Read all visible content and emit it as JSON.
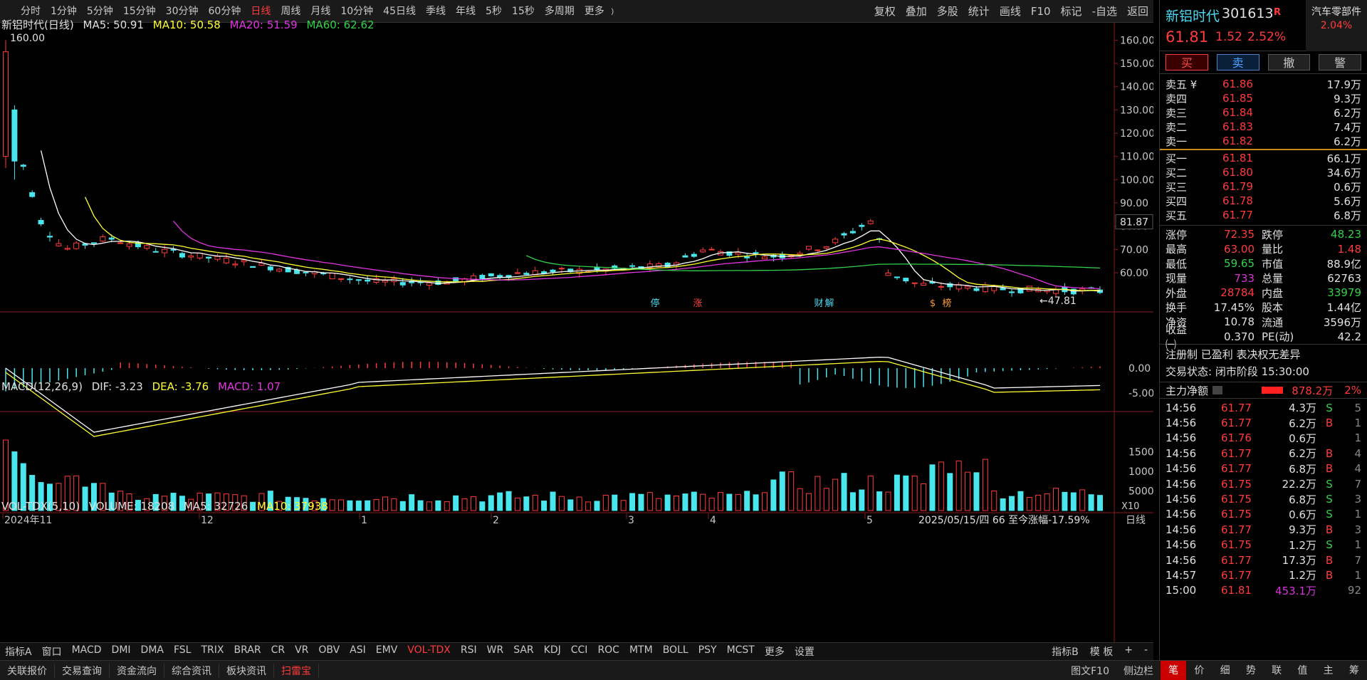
{
  "toolbar": {
    "periods": [
      "分时",
      "1分钟",
      "5分钟",
      "15分钟",
      "30分钟",
      "60分钟",
      "日线",
      "周线",
      "月线",
      "10分钟",
      "45日线",
      "季线",
      "年线",
      "5秒",
      "15秒",
      "多周期",
      "更多 ﹚"
    ],
    "active_period": "日线",
    "tools": [
      "复权",
      "叠加",
      "多股",
      "统计",
      "画线",
      "F10",
      "标记",
      "-自选",
      "返回"
    ]
  },
  "chart": {
    "title": "新铝时代(日线)",
    "ma5_label": "MA5: 50.91",
    "ma10_label": "MA10: 50.58",
    "ma20_label": "MA20: 51.59",
    "ma60_label": "MA60: 62.62",
    "high_marker": "160.00",
    "low_marker": "←47.81",
    "last_price_tag": "81.87",
    "y_ticks": [
      "160.00",
      "150.00",
      "140.00",
      "130.00",
      "120.00",
      "110.00",
      "100.00",
      "90.00",
      "80.00",
      "70.00",
      "60.00"
    ],
    "event_markers": [
      "停",
      "涨",
      "财",
      "解",
      "$",
      "榜"
    ],
    "macd_legend": "MACD(12,26,9)",
    "macd_dif": "DIF: -3.23",
    "macd_dea": "DEA: -3.76",
    "macd_val": "MACD: 1.07",
    "macd_ticks": [
      "0.00",
      "-5.00"
    ],
    "vol_legend": "VOL-TDX(5,10)",
    "vol_value": "VOLUME: 18208",
    "vol_ma5": "MA5: 32726",
    "vol_ma10": "MA10: 37938",
    "vol_ticks": [
      "15000",
      "10000",
      "5000"
    ],
    "vol_unit": "X10",
    "date_labels": [
      "2024年11",
      "12",
      "1",
      "2",
      "3",
      "4",
      "5"
    ],
    "date_info": "2025/05/15/四 66 至今涨幅-17.59%",
    "axis_period": "日线",
    "colors": {
      "up": "#ff3b3b",
      "down": "#4ae6ee",
      "ma5": "#ffffff",
      "ma10": "#ffff33",
      "ma20": "#e035e0",
      "ma60": "#33d14a"
    }
  },
  "indicator_tabs": [
    "指标A",
    "窗口",
    "MACD",
    "DMI",
    "DMA",
    "FSL",
    "TRIX",
    "BRAR",
    "CR",
    "VR",
    "OBV",
    "ASI",
    "EMV",
    "VOL-TDX",
    "RSI",
    "WR",
    "SAR",
    "KDJ",
    "CCI",
    "ROC",
    "MTM",
    "BOLL",
    "PSY",
    "MCST",
    "更多",
    "设置"
  ],
  "active_indicator": "VOL-TDX",
  "indicator_right": [
    "指标B",
    "模 板",
    "+",
    "-"
  ],
  "statusbar": {
    "items": [
      "关联报价",
      "交易查询",
      "资金流向",
      "综合资讯",
      "板块资讯",
      "扫雷宝"
    ],
    "active": "扫雷宝",
    "right": [
      "图文F10",
      "侧边栏"
    ],
    "quote_tabs": [
      "笔",
      "价",
      "细",
      "势",
      "联",
      "值",
      "主",
      "筹"
    ],
    "active_quote_tab": "笔"
  },
  "stock": {
    "name": "新铝时代",
    "code": "301613",
    "r_mark": "R",
    "sector": "汽车零部件",
    "sector_pct": "2.04%",
    "price": "61.81",
    "change": "1.52",
    "change_pct": "2.52%"
  },
  "trade_buttons": {
    "buy": "买",
    "sell": "卖",
    "cancel": "撤",
    "warn": "警"
  },
  "orderbook": {
    "asks": [
      {
        "label": "卖五 ¥",
        "price": "61.86",
        "vol": "17.9万"
      },
      {
        "label": "卖四",
        "price": "61.85",
        "vol": "9.3万"
      },
      {
        "label": "卖三",
        "price": "61.84",
        "vol": "6.2万"
      },
      {
        "label": "卖二",
        "price": "61.83",
        "vol": "7.4万"
      },
      {
        "label": "卖一",
        "price": "61.82",
        "vol": "6.2万"
      }
    ],
    "bids": [
      {
        "label": "买一",
        "price": "61.81",
        "vol": "66.1万"
      },
      {
        "label": "买二",
        "price": "61.80",
        "vol": "34.6万"
      },
      {
        "label": "买三",
        "price": "61.79",
        "vol": "0.6万"
      },
      {
        "label": "买四",
        "price": "61.78",
        "vol": "5.6万"
      },
      {
        "label": "买五",
        "price": "61.77",
        "vol": "6.8万"
      }
    ]
  },
  "stats": [
    {
      "k": "涨停",
      "v": "72.35",
      "vc": "red",
      "k2": "跌停",
      "v2": "48.23",
      "v2c": "green"
    },
    {
      "k": "最高",
      "v": "63.00",
      "vc": "red",
      "k2": "量比",
      "v2": "1.48",
      "v2c": "red"
    },
    {
      "k": "最低",
      "v": "59.65",
      "vc": "green",
      "k2": "市值",
      "v2": "88.9亿",
      "v2c": "white"
    },
    {
      "k": "现量",
      "v": "733",
      "vc": "purple",
      "k2": "总量",
      "v2": "62763",
      "v2c": "white"
    },
    {
      "k": "外盘",
      "v": "28784",
      "vc": "red",
      "k2": "内盘",
      "v2": "33979",
      "v2c": "green"
    },
    {
      "k": "换手",
      "v": "17.45%",
      "vc": "white",
      "k2": "股本",
      "v2": "1.44亿",
      "v2c": "white"
    },
    {
      "k": "净资",
      "v": "10.78",
      "vc": "white",
      "k2": "流通",
      "v2": "3596万",
      "v2c": "white"
    },
    {
      "k": "收益㈠",
      "v": "0.370",
      "vc": "white",
      "k2": "PE(动)",
      "v2": "42.2",
      "v2c": "white"
    }
  ],
  "info": {
    "line1": "注册制 已盈利 表决权无差异",
    "line2": "交易状态: 闭市阶段 15:30:00"
  },
  "flow": {
    "label": "主力净额",
    "value": "878.2万",
    "pct": "2%"
  },
  "ticks": [
    {
      "t": "14:56",
      "p": "61.77",
      "v": "4.3万",
      "d": "S",
      "n": "5"
    },
    {
      "t": "14:56",
      "p": "61.77",
      "v": "6.2万",
      "d": "B",
      "n": "1"
    },
    {
      "t": "14:56",
      "p": "61.76",
      "v": "0.6万",
      "d": "",
      "n": "1"
    },
    {
      "t": "14:56",
      "p": "61.77",
      "v": "6.2万",
      "d": "B",
      "n": "4"
    },
    {
      "t": "14:56",
      "p": "61.77",
      "v": "6.8万",
      "d": "B",
      "n": "4"
    },
    {
      "t": "14:56",
      "p": "61.75",
      "v": "22.2万",
      "d": "S",
      "n": "7"
    },
    {
      "t": "14:56",
      "p": "61.75",
      "v": "6.8万",
      "d": "S",
      "n": "3"
    },
    {
      "t": "14:56",
      "p": "61.75",
      "v": "0.6万",
      "d": "S",
      "n": "1"
    },
    {
      "t": "14:56",
      "p": "61.77",
      "v": "9.3万",
      "d": "B",
      "n": "3"
    },
    {
      "t": "14:56",
      "p": "61.75",
      "v": "1.2万",
      "d": "S",
      "n": "1"
    },
    {
      "t": "14:56",
      "p": "61.77",
      "v": "17.3万",
      "d": "B",
      "n": "7"
    },
    {
      "t": "14:57",
      "p": "61.77",
      "v": "1.2万",
      "d": "B",
      "n": "1"
    },
    {
      "t": "15:00",
      "p": "61.81",
      "v": "453.1万",
      "d": "",
      "n": "92"
    }
  ]
}
